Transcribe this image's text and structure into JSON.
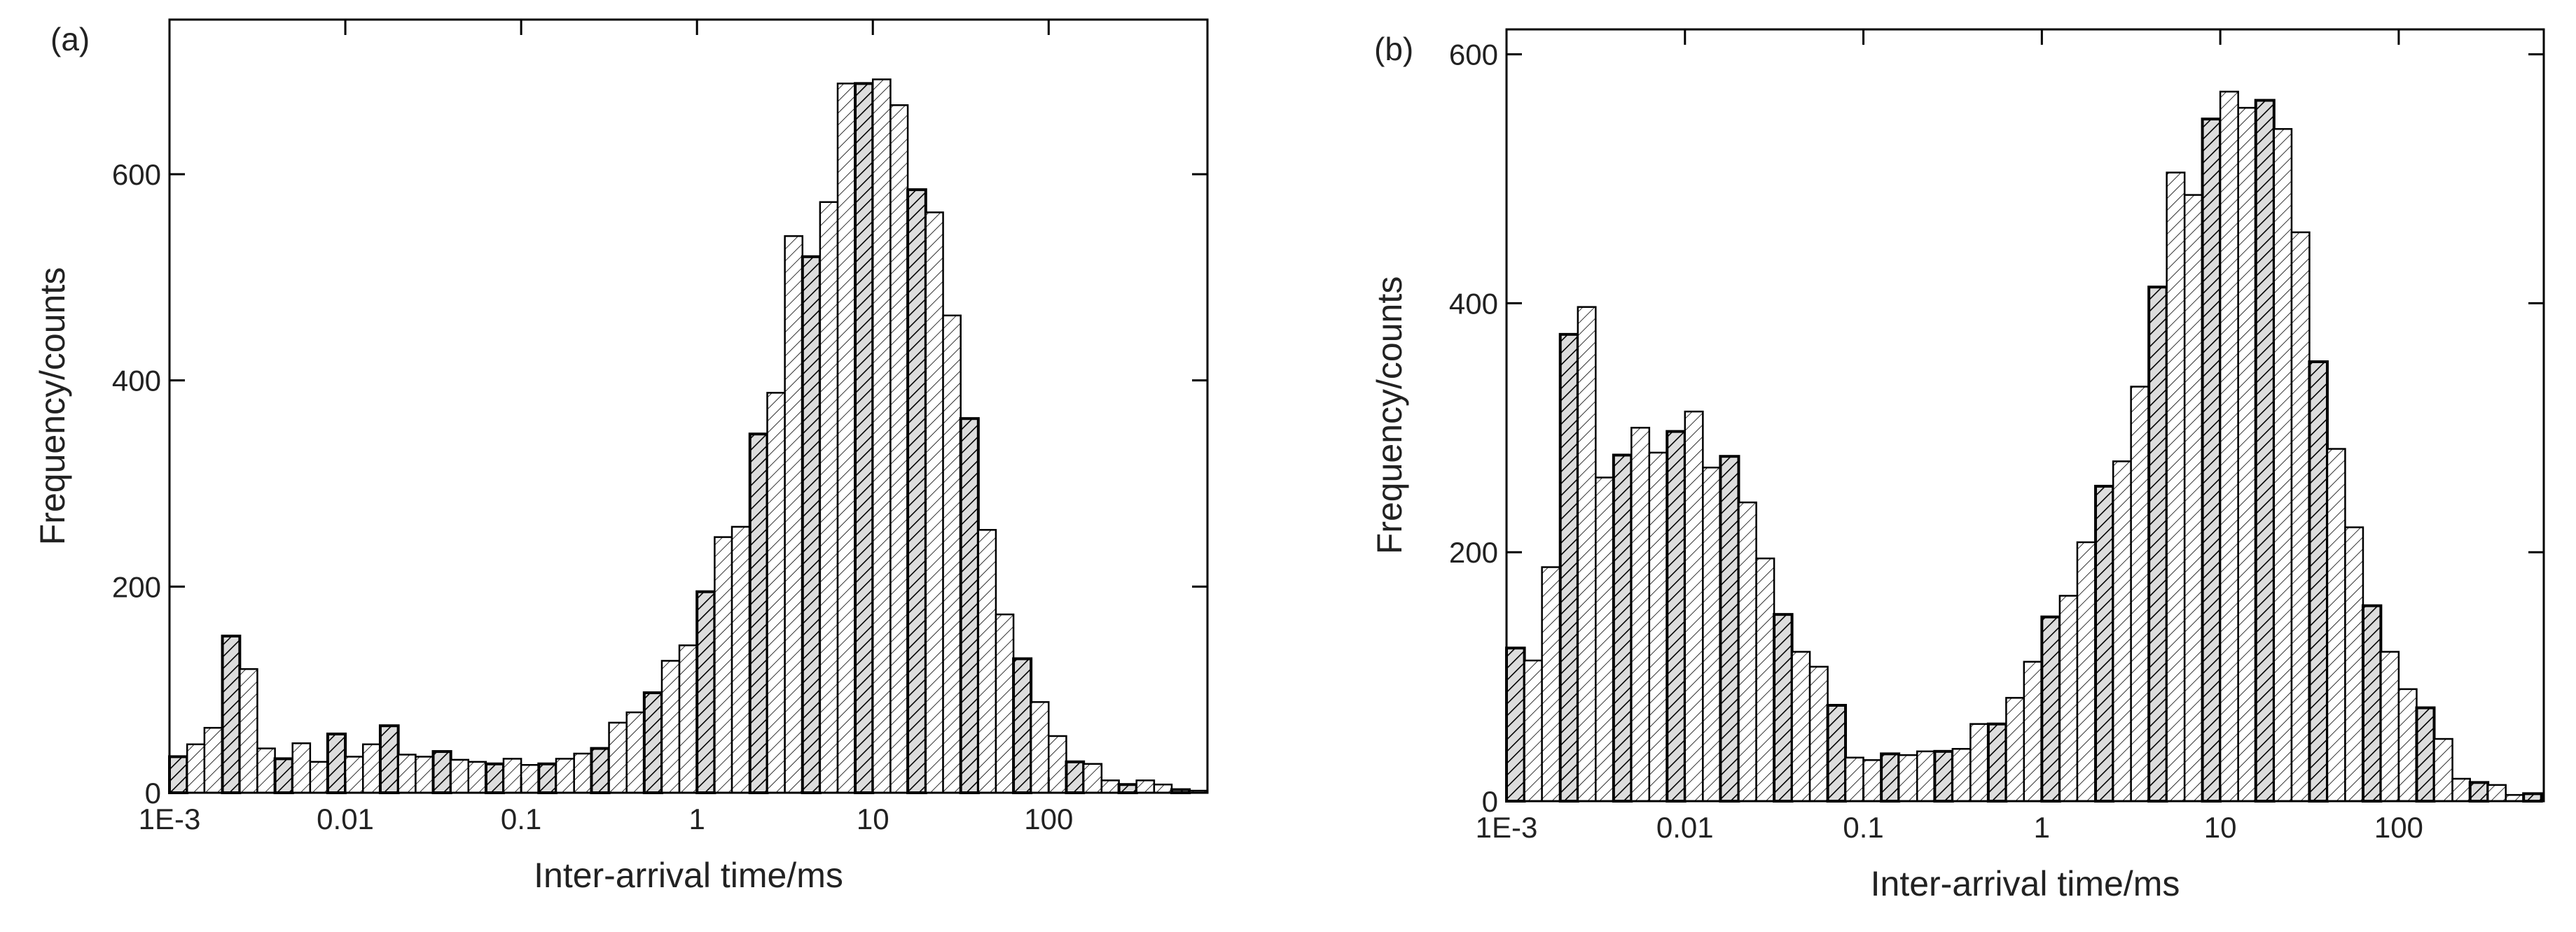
{
  "chart_data": [
    {
      "type": "histogram",
      "panel_label": "(a)",
      "xlabel": "Inter-arrival time/ms",
      "ylabel": "Frequency/counts",
      "xscale": "log",
      "color": "#000000",
      "xlim": [
        0.001,
        800
      ],
      "ylim": [
        0,
        750
      ],
      "xticks": [
        {
          "value": 0.001,
          "label": "1E-3"
        },
        0.01,
        0.1,
        1,
        10,
        100
      ],
      "yticks": [
        0,
        200,
        400,
        600
      ],
      "bins": [
        0.001,
        0.00126,
        0.00158,
        0.002,
        0.00251,
        0.00316,
        0.00398,
        0.00501,
        0.00631,
        0.00794,
        0.01,
        0.0126,
        0.0158,
        0.02,
        0.0251,
        0.0316,
        0.0398,
        0.0501,
        0.0631,
        0.0794,
        0.1,
        0.126,
        0.158,
        0.2,
        0.251,
        0.316,
        0.398,
        0.501,
        0.631,
        0.794,
        1,
        1.26,
        1.58,
        2,
        2.51,
        3.16,
        3.98,
        5.01,
        6.31,
        7.94,
        10,
        12.6,
        15.8,
        20,
        25.1,
        31.6,
        39.8,
        50.1,
        63.1,
        79.4,
        100,
        126,
        158,
        200,
        251,
        316,
        398,
        501,
        631,
        794
      ],
      "counts": [
        35,
        47,
        63,
        152,
        120,
        43,
        33,
        48,
        30,
        57,
        35,
        47,
        65,
        37,
        35,
        40,
        32,
        30,
        28,
        33,
        27,
        28,
        33,
        38,
        43,
        68,
        78,
        97,
        128,
        143,
        195,
        248,
        258,
        348,
        388,
        540,
        520,
        573,
        688,
        688,
        692,
        667,
        585,
        563,
        463,
        363,
        255,
        173,
        130,
        88,
        55,
        30,
        28,
        12,
        8,
        12,
        8,
        3,
        2
      ]
    },
    {
      "type": "histogram",
      "panel_label": "(b)",
      "xlabel": "Inter-arrival time/ms",
      "ylabel": "Frequency/counts",
      "xscale": "log",
      "color": "#000000",
      "xlim": [
        0.001,
        650
      ],
      "ylim": [
        0,
        620
      ],
      "xticks": [
        {
          "value": 0.001,
          "label": "1E-3"
        },
        0.01,
        0.1,
        1,
        10,
        100
      ],
      "yticks": [
        0,
        200,
        400,
        600
      ],
      "bins": [
        0.001,
        0.00126,
        0.00158,
        0.002,
        0.00251,
        0.00316,
        0.00398,
        0.00501,
        0.00631,
        0.00794,
        0.01,
        0.0126,
        0.0158,
        0.02,
        0.0251,
        0.0316,
        0.0398,
        0.0501,
        0.0631,
        0.0794,
        0.1,
        0.126,
        0.158,
        0.2,
        0.251,
        0.316,
        0.398,
        0.501,
        0.631,
        0.794,
        1,
        1.26,
        1.58,
        2,
        2.51,
        3.16,
        3.98,
        5.01,
        6.31,
        7.94,
        10,
        12.6,
        15.8,
        20,
        25.1,
        31.6,
        39.8,
        50.1,
        63.1,
        79.4,
        100,
        126,
        158,
        200,
        251,
        316,
        398,
        501,
        631
      ],
      "counts": [
        123,
        113,
        188,
        375,
        397,
        260,
        278,
        300,
        280,
        297,
        313,
        268,
        277,
        240,
        195,
        150,
        120,
        108,
        77,
        35,
        33,
        38,
        37,
        40,
        40,
        42,
        62,
        62,
        83,
        112,
        148,
        165,
        208,
        253,
        273,
        333,
        413,
        505,
        487,
        548,
        570,
        557,
        563,
        540,
        457,
        353,
        283,
        220,
        157,
        120,
        90,
        75,
        50,
        18,
        15,
        13,
        5,
        6
      ]
    }
  ]
}
